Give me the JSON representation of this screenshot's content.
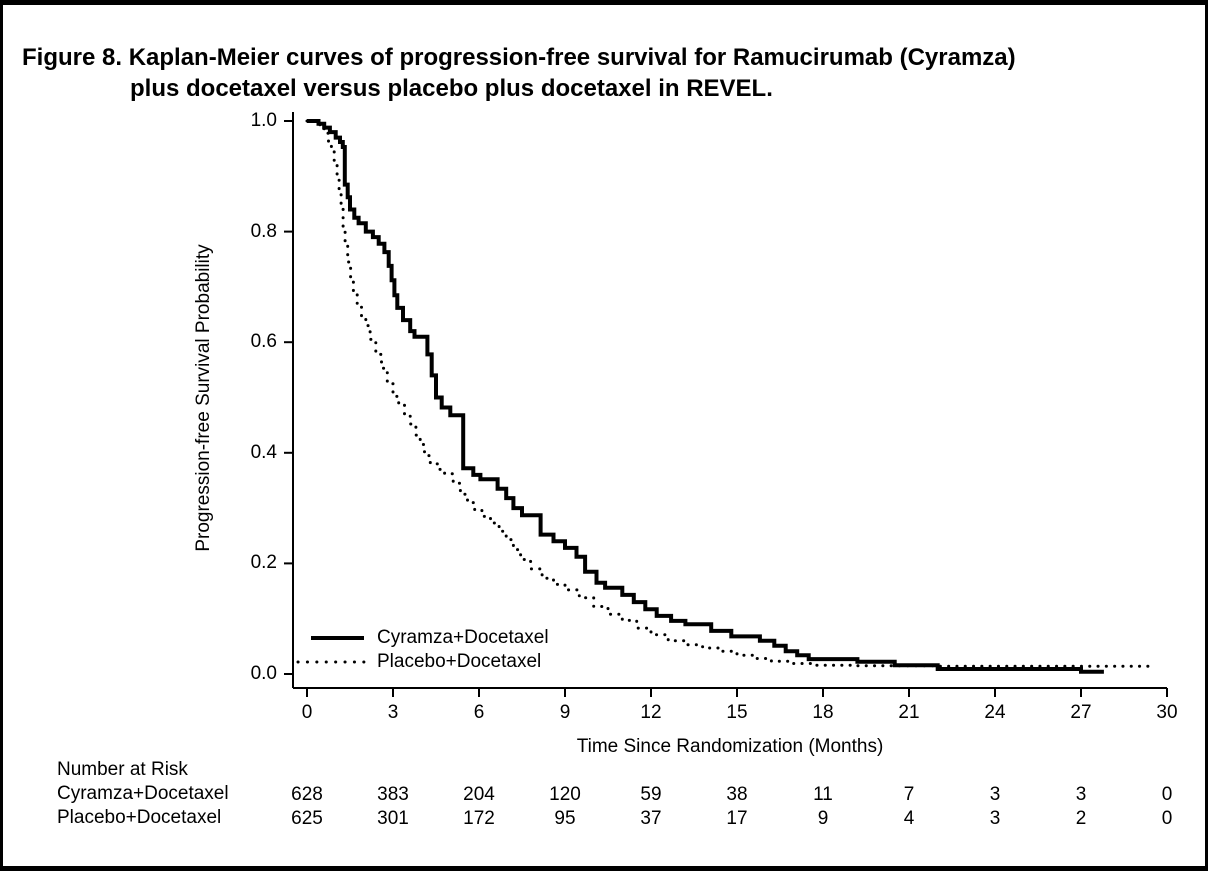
{
  "chart_data": {
    "type": "line",
    "subtype": "kaplan-meier-step",
    "title": "Figure 8. Kaplan-Meier curves of progression-free survival for Ramucirumab (Cyramza) plus docetaxel versus placebo plus docetaxel in REVEL.",
    "title_line1": "Figure 8. Kaplan-Meier curves of progression-free survival for Ramucirumab (Cyramza)",
    "title_line2": "plus docetaxel versus placebo plus docetaxel in REVEL.",
    "xlabel": "Time Since Randomization (Months)",
    "ylabel": "Progression-free Survival Probability",
    "xlim": [
      0,
      30
    ],
    "ylim": [
      0.0,
      1.0
    ],
    "x_ticks": [
      "0",
      "3",
      "6",
      "9",
      "12",
      "15",
      "18",
      "21",
      "24",
      "27",
      "30"
    ],
    "y_ticks": [
      "0.0",
      "0.2",
      "0.4",
      "0.6",
      "0.8",
      "1.0"
    ],
    "grid": false,
    "legend_position": "inside-lower-left",
    "ink_color": "#000000",
    "background_color": "#ffffff",
    "series": [
      {
        "name": "Cyramza+Docetaxel",
        "line_style": "solid",
        "end_time": 27.8,
        "steps": [
          [
            0,
            1.0
          ],
          [
            0.4,
            0.995
          ],
          [
            0.6,
            0.988
          ],
          [
            0.8,
            0.98
          ],
          [
            1.0,
            0.97
          ],
          [
            1.15,
            0.962
          ],
          [
            1.25,
            0.953
          ],
          [
            1.32,
            0.885
          ],
          [
            1.42,
            0.862
          ],
          [
            1.5,
            0.84
          ],
          [
            1.65,
            0.825
          ],
          [
            1.8,
            0.815
          ],
          [
            2.05,
            0.8
          ],
          [
            2.3,
            0.79
          ],
          [
            2.5,
            0.778
          ],
          [
            2.7,
            0.763
          ],
          [
            2.85,
            0.738
          ],
          [
            2.95,
            0.712
          ],
          [
            3.05,
            0.685
          ],
          [
            3.15,
            0.662
          ],
          [
            3.35,
            0.64
          ],
          [
            3.6,
            0.62
          ],
          [
            3.75,
            0.61
          ],
          [
            4.2,
            0.578
          ],
          [
            4.35,
            0.54
          ],
          [
            4.5,
            0.5
          ],
          [
            4.7,
            0.482
          ],
          [
            5.0,
            0.468
          ],
          [
            5.45,
            0.372
          ],
          [
            5.8,
            0.36
          ],
          [
            6.05,
            0.352
          ],
          [
            6.65,
            0.335
          ],
          [
            6.95,
            0.318
          ],
          [
            7.2,
            0.3
          ],
          [
            7.5,
            0.287
          ],
          [
            8.15,
            0.252
          ],
          [
            8.6,
            0.24
          ],
          [
            9.0,
            0.228
          ],
          [
            9.4,
            0.212
          ],
          [
            9.7,
            0.185
          ],
          [
            10.1,
            0.165
          ],
          [
            10.4,
            0.156
          ],
          [
            11.0,
            0.143
          ],
          [
            11.4,
            0.13
          ],
          [
            11.8,
            0.117
          ],
          [
            12.2,
            0.105
          ],
          [
            12.7,
            0.096
          ],
          [
            13.2,
            0.09
          ],
          [
            14.1,
            0.078
          ],
          [
            14.8,
            0.068
          ],
          [
            15.8,
            0.06
          ],
          [
            16.3,
            0.051
          ],
          [
            16.7,
            0.041
          ],
          [
            17.1,
            0.034
          ],
          [
            17.5,
            0.027
          ],
          [
            19.2,
            0.022
          ],
          [
            20.5,
            0.016
          ],
          [
            22.0,
            0.009
          ],
          [
            27.0,
            0.004
          ]
        ]
      },
      {
        "name": "Placebo+Docetaxel",
        "line_style": "dotted",
        "end_time": 29.5,
        "steps": [
          [
            0,
            1.0
          ],
          [
            0.45,
            0.99
          ],
          [
            0.6,
            0.978
          ],
          [
            0.75,
            0.962
          ],
          [
            0.85,
            0.945
          ],
          [
            0.95,
            0.925
          ],
          [
            1.05,
            0.9
          ],
          [
            1.12,
            0.875
          ],
          [
            1.19,
            0.845
          ],
          [
            1.26,
            0.81
          ],
          [
            1.33,
            0.775
          ],
          [
            1.42,
            0.745
          ],
          [
            1.52,
            0.715
          ],
          [
            1.62,
            0.69
          ],
          [
            1.75,
            0.668
          ],
          [
            1.9,
            0.648
          ],
          [
            2.05,
            0.63
          ],
          [
            2.2,
            0.605
          ],
          [
            2.4,
            0.578
          ],
          [
            2.6,
            0.553
          ],
          [
            2.8,
            0.525
          ],
          [
            3.0,
            0.502
          ],
          [
            3.2,
            0.487
          ],
          [
            3.4,
            0.47
          ],
          [
            3.6,
            0.452
          ],
          [
            3.8,
            0.432
          ],
          [
            3.95,
            0.415
          ],
          [
            4.1,
            0.395
          ],
          [
            4.3,
            0.38
          ],
          [
            4.55,
            0.37
          ],
          [
            4.8,
            0.362
          ],
          [
            5.1,
            0.345
          ],
          [
            5.35,
            0.325
          ],
          [
            5.6,
            0.31
          ],
          [
            5.85,
            0.297
          ],
          [
            6.1,
            0.285
          ],
          [
            6.4,
            0.273
          ],
          [
            6.7,
            0.258
          ],
          [
            6.95,
            0.243
          ],
          [
            7.2,
            0.225
          ],
          [
            7.45,
            0.207
          ],
          [
            7.8,
            0.19
          ],
          [
            8.2,
            0.173
          ],
          [
            8.6,
            0.162
          ],
          [
            9.0,
            0.152
          ],
          [
            9.5,
            0.138
          ],
          [
            10.0,
            0.122
          ],
          [
            10.5,
            0.108
          ],
          [
            11.0,
            0.097
          ],
          [
            11.5,
            0.083
          ],
          [
            12.0,
            0.071
          ],
          [
            12.6,
            0.06
          ],
          [
            13.2,
            0.053
          ],
          [
            13.8,
            0.047
          ],
          [
            14.4,
            0.041
          ],
          [
            15.0,
            0.034
          ],
          [
            15.6,
            0.028
          ],
          [
            16.2,
            0.023
          ],
          [
            16.8,
            0.019
          ],
          [
            17.6,
            0.016
          ],
          [
            19.0,
            0.015
          ],
          [
            22.0,
            0.014
          ]
        ]
      }
    ],
    "risk_table": {
      "header": "Number at Risk",
      "times": [
        0,
        3,
        6,
        9,
        12,
        15,
        18,
        21,
        24,
        27,
        30
      ],
      "rows": [
        {
          "label": "Cyramza+Docetaxel",
          "values": [
            "628",
            "383",
            "204",
            "120",
            "59",
            "38",
            "11",
            "7",
            "3",
            "3",
            "0"
          ]
        },
        {
          "label": "Placebo+Docetaxel",
          "values": [
            "625",
            "301",
            "172",
            "95",
            "37",
            "17",
            "9",
            "4",
            "3",
            "2",
            "0"
          ]
        }
      ]
    }
  }
}
